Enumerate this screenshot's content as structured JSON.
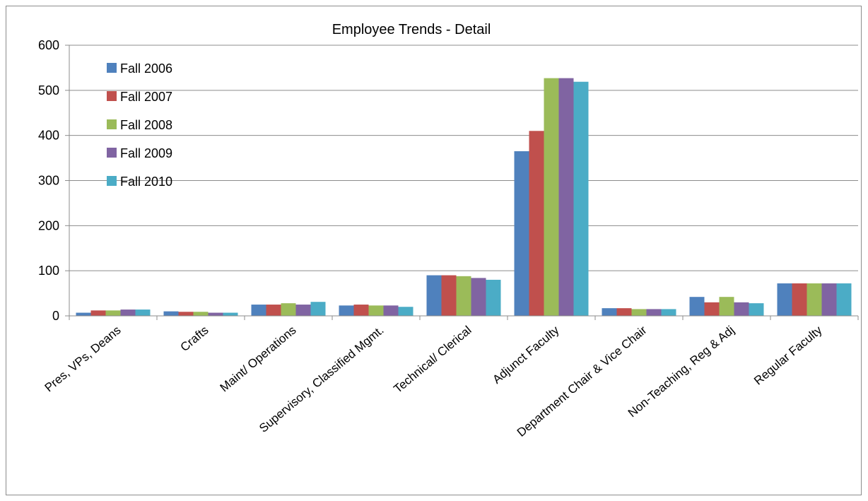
{
  "chart_data": {
    "type": "bar",
    "title": "Employee Trends - Detail",
    "xlabel": "",
    "ylabel": "",
    "ylim": [
      0,
      600
    ],
    "yticks": [
      0,
      100,
      200,
      300,
      400,
      500,
      600
    ],
    "grid": true,
    "legend_position": "top-left",
    "categories": [
      "Pres, VPs, Deans",
      "Crafts",
      "Maint/ Operations",
      "Supervisory, Classified Mgmt.",
      "Technical/ Clerical",
      "Adjunct Faculty",
      "Department Chair & Vice Chair",
      "Non-Teaching, Reg & Adj",
      "Regular Faculty"
    ],
    "series": [
      {
        "name": "Fall 2006",
        "color": "#4F81BD",
        "values": [
          7,
          10,
          25,
          23,
          90,
          365,
          17,
          42,
          72
        ]
      },
      {
        "name": "Fall 2007",
        "color": "#C0504D",
        "values": [
          12,
          9,
          25,
          25,
          90,
          410,
          17,
          30,
          72
        ]
      },
      {
        "name": "Fall 2008",
        "color": "#9BBB59",
        "values": [
          12,
          9,
          28,
          23,
          88,
          527,
          15,
          42,
          72
        ]
      },
      {
        "name": "Fall 2009",
        "color": "#8064A2",
        "values": [
          14,
          7,
          25,
          23,
          84,
          527,
          15,
          30,
          72
        ]
      },
      {
        "name": "Fall 2010",
        "color": "#4BACC6",
        "values": [
          14,
          7,
          31,
          20,
          80,
          519,
          15,
          28,
          72
        ]
      }
    ]
  }
}
